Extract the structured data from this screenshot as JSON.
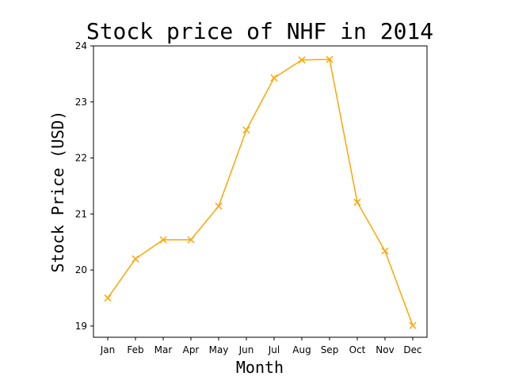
{
  "chart_data": {
    "type": "line",
    "title": "Stock price of NHF in 2014",
    "xlabel": "Month",
    "ylabel": "Stock Price (USD)",
    "categories": [
      "Jan",
      "Feb",
      "Mar",
      "Apr",
      "May",
      "Jun",
      "Jul",
      "Aug",
      "Sep",
      "Oct",
      "Nov",
      "Dec"
    ],
    "series": [
      {
        "values": [
          19.5,
          20.2,
          20.54,
          20.54,
          21.14,
          22.5,
          23.43,
          23.75,
          23.76,
          21.21,
          20.34,
          19.01
        ],
        "color": "#ffa500",
        "marker": "x"
      }
    ],
    "ylim": [
      18.8,
      24.0
    ],
    "yticks": [
      19,
      20,
      21,
      22,
      23,
      24
    ],
    "grid": false
  }
}
